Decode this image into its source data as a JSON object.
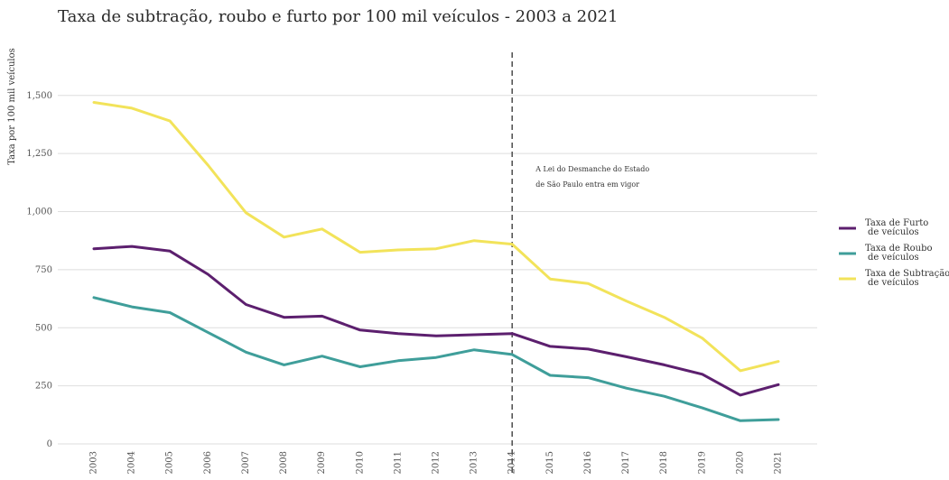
{
  "chart_data": {
    "type": "line",
    "title": "Taxa de subtração, roubo e furto por 100 mil veículos - 2003 a 2021",
    "xlabel": "",
    "ylabel": "Taxa por 100 mil veículos",
    "x": [
      "2003",
      "2004",
      "2005",
      "2006",
      "2007",
      "2008",
      "2009",
      "2010",
      "2011",
      "2012",
      "2013",
      "2014",
      "2015",
      "2016",
      "2017",
      "2018",
      "2019",
      "2020",
      "2021"
    ],
    "ylim": [
      0,
      1600
    ],
    "yticks": [
      0,
      250,
      500,
      750,
      1000,
      1250,
      1500
    ],
    "ytick_labels": [
      "0",
      "250",
      "500",
      "750",
      "1,000",
      "1,250",
      "1,500"
    ],
    "grid": "horizontal",
    "legend_position": "right",
    "series": [
      {
        "name": "Taxa de Furto de veículos",
        "legend_lines": [
          "Taxa de Furto",
          "de veículos"
        ],
        "color": "#5c1f6e",
        "values": [
          840,
          850,
          830,
          730,
          600,
          545,
          550,
          490,
          475,
          465,
          470,
          475,
          420,
          408,
          375,
          340,
          300,
          210,
          255
        ]
      },
      {
        "name": "Taxa de Roubo de veículos",
        "legend_lines": [
          "Taxa de Roubo",
          "de veículos"
        ],
        "color": "#3f9e9a",
        "values": [
          630,
          590,
          565,
          480,
          395,
          340,
          378,
          332,
          358,
          372,
          405,
          385,
          295,
          285,
          240,
          205,
          155,
          100,
          105
        ]
      },
      {
        "name": "Taxa de Subtração de veículos",
        "legend_lines": [
          "Taxa de Subtração",
          "de veículos"
        ],
        "color": "#f2e35a",
        "values": [
          1470,
          1445,
          1390,
          1200,
          995,
          890,
          925,
          825,
          835,
          840,
          875,
          860,
          710,
          690,
          615,
          545,
          455,
          315,
          355
        ]
      }
    ],
    "annotations": [
      {
        "type": "vline",
        "x": "2014",
        "style": "dashed",
        "text_lines": [
          "A Lei do Desmanche do Estado",
          "de São Paulo entra em vigor"
        ]
      }
    ]
  }
}
